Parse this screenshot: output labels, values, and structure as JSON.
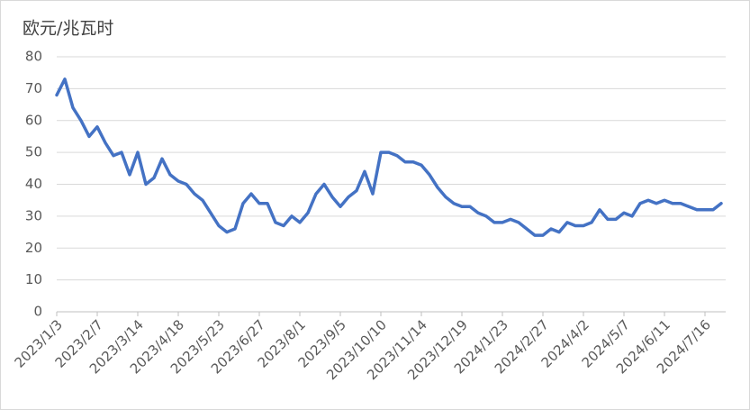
{
  "chart_data": {
    "type": "line",
    "title": "欧元/兆瓦时",
    "categories": [
      "2023/1/3",
      null,
      null,
      null,
      null,
      "2023/2/7",
      null,
      null,
      null,
      null,
      "2023/3/14",
      null,
      null,
      null,
      null,
      "2023/4/18",
      null,
      null,
      null,
      null,
      "2023/5/23",
      null,
      null,
      null,
      null,
      "2023/6/27",
      null,
      null,
      null,
      null,
      "2023/8/1",
      null,
      null,
      null,
      null,
      "2023/9/5",
      null,
      null,
      null,
      null,
      "2023/10/10",
      null,
      null,
      null,
      null,
      "2023/11/14",
      null,
      null,
      null,
      null,
      "2023/12/19",
      null,
      null,
      null,
      null,
      "2024/1/23",
      null,
      null,
      null,
      null,
      "2024/2/27",
      null,
      null,
      null,
      null,
      "2024/4/2",
      null,
      null,
      null,
      null,
      "2024/5/7",
      null,
      null,
      null,
      null,
      "2024/6/11",
      null,
      null,
      null,
      null,
      "2024/7/16",
      null,
      null
    ],
    "values": [
      68,
      73,
      64,
      60,
      55,
      58,
      53,
      49,
      50,
      43,
      50,
      40,
      42,
      48,
      43,
      41,
      40,
      37,
      35,
      31,
      27,
      25,
      26,
      34,
      37,
      34,
      34,
      28,
      27,
      30,
      28,
      31,
      37,
      40,
      36,
      33,
      36,
      38,
      44,
      37,
      50,
      50,
      49,
      47,
      47,
      46,
      43,
      39,
      36,
      34,
      33,
      33,
      31,
      30,
      28,
      28,
      29,
      28,
      26,
      24,
      24,
      26,
      25,
      28,
      27,
      27,
      28,
      32,
      29,
      29,
      31,
      30,
      34,
      35,
      34,
      35,
      34,
      34,
      33,
      32,
      32,
      32,
      34
    ],
    "color": "#4472c4",
    "ylim": [
      0,
      80
    ],
    "yticks": [
      0,
      10,
      20,
      30,
      40,
      50,
      60,
      70,
      80
    ],
    "grid": true
  }
}
